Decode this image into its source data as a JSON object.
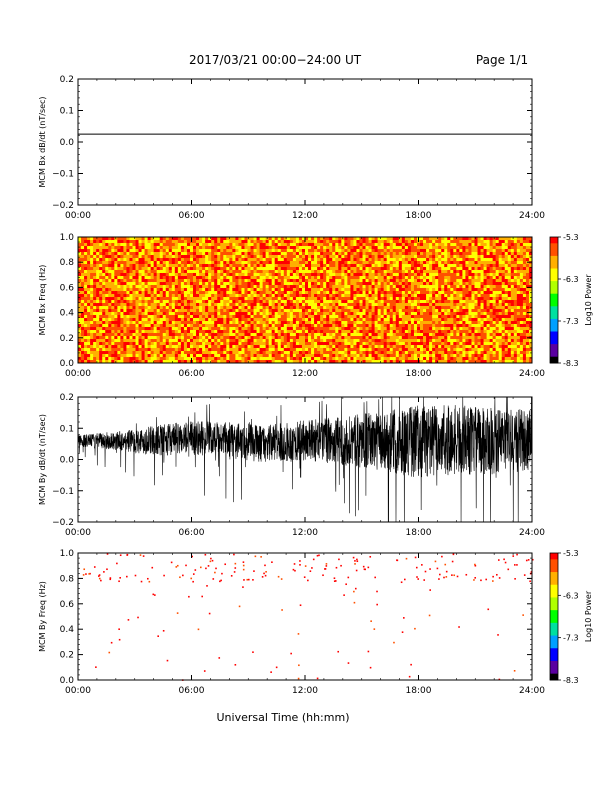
{
  "header": {
    "title": "2017/03/21  00:00−24:00 UT",
    "page": "Page 1/1"
  },
  "x_label": "Universal Time (hh:mm)",
  "colorbar": {
    "label": "Log10 Power",
    "ticks": [
      "-5.3",
      "-6.3",
      "-7.3",
      "-8.3"
    ],
    "range": [
      -8.3,
      -5.3
    ]
  },
  "colors": {
    "trace": "#000000",
    "background": "#ffffff",
    "colormap": [
      "#000000",
      "#5a00a0",
      "#0000ff",
      "#00a0ff",
      "#00e0a0",
      "#00ff00",
      "#b0ff00",
      "#ffff00",
      "#ffb000",
      "#ff5000",
      "#ff0000"
    ]
  },
  "chart_data": [
    {
      "type": "line",
      "ylabel": "MCM Bx dB/dt (nT/sec)",
      "ylim": [
        -0.2,
        0.2
      ],
      "yticks": [
        "0.2",
        "0.1",
        "0.0",
        "−0.1",
        "−0.2"
      ],
      "xlim": [
        "00:00",
        "24:00"
      ],
      "xticks": [
        "00:00",
        "06:00",
        "12:00",
        "18:00",
        "24:00"
      ],
      "series": [
        {
          "x": [
            "00:00",
            "24:00"
          ],
          "values": [
            0.025,
            0.025
          ]
        }
      ]
    },
    {
      "type": "heatmap",
      "ylabel": "MCM Bx Freq (Hz)",
      "ylim": [
        0.0,
        1.0
      ],
      "yticks": [
        "1.0",
        "0.8",
        "0.6",
        "0.4",
        "0.2",
        "0.0"
      ],
      "xlim": [
        "00:00",
        "24:00"
      ],
      "xticks": [
        "00:00",
        "06:00",
        "12:00",
        "18:00",
        "24:00"
      ],
      "power_range": [
        -8.3,
        -5.3
      ],
      "typical_power": -5.7,
      "note_fill": "dense noise of yellow/orange/red with scattered green"
    },
    {
      "type": "line",
      "ylabel": "MCM By dB/dt (nT/sec)",
      "ylim": [
        -0.2,
        0.2
      ],
      "yticks": [
        "0.2",
        "0.1",
        "0.0",
        "−0.1",
        "−0.2"
      ],
      "xlim": [
        "00:00",
        "24:00"
      ],
      "xticks": [
        "00:00",
        "06:00",
        "12:00",
        "18:00",
        "24:00"
      ],
      "series": [
        {
          "x_hours": [
            0,
            2,
            4,
            6,
            8,
            10,
            12,
            14,
            16,
            18,
            20,
            22,
            24
          ],
          "mean": [
            0.06,
            0.06,
            0.06,
            0.07,
            0.06,
            0.05,
            0.06,
            0.06,
            0.06,
            0.06,
            0.06,
            0.06,
            0.06
          ],
          "amplitude": [
            0.03,
            0.05,
            0.08,
            0.09,
            0.1,
            0.1,
            0.11,
            0.13,
            0.16,
            0.2,
            0.19,
            0.18,
            0.17
          ]
        }
      ]
    },
    {
      "type": "heatmap",
      "ylabel": "MCM By Freq (Hz)",
      "ylim": [
        0.0,
        1.0
      ],
      "yticks": [
        "1.0",
        "0.8",
        "0.6",
        "0.4",
        "0.2",
        "0.0"
      ],
      "xlim": [
        "00:00",
        "24:00"
      ],
      "xticks": [
        "00:00",
        "06:00",
        "12:00",
        "18:00",
        "24:00"
      ],
      "power_range": [
        -8.3,
        -5.3
      ],
      "typical_power": -5.4,
      "note_fill": "sparse red specks concentrated near 0.8–1.0 Hz"
    }
  ]
}
